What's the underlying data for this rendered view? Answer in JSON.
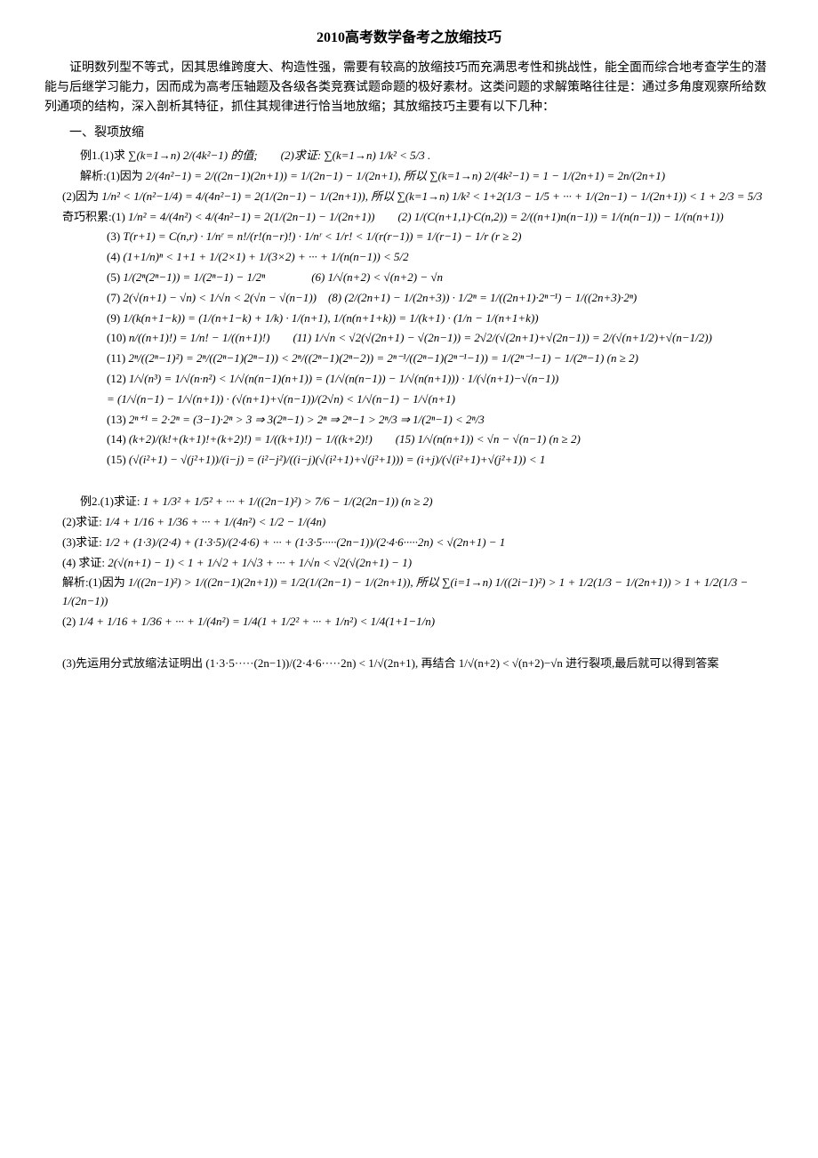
{
  "title": "2010高考数学备考之放缩技巧",
  "intro_p1": "证明数列型不等式，因其思维跨度大、构造性强，需要有较高的放缩技巧而充满思考性和挑战性，能全面而综合地考查学生的潜能与后继学习能力，因而成为高考压轴题及各级各类竞赛试题命题的极好素材。这类问题的求解策略往往是：通过多角度观察所给数列通项的结构，深入剖析其特征，抓住其规律进行恰当地放缩；其放缩技巧主要有以下几种：",
  "section1": "一、裂项放缩",
  "ex1_label": "例1.(1)求",
  "ex1_formula": "∑(k=1→n) 2/(4k²−1) 的值;　　(2)求证: ∑(k=1→n) 1/k² < 5/3 .",
  "ex1_analysis_label": "解析:(1)因为",
  "ex1_analysis": "2/(4n²−1) = 2/((2n−1)(2n+1)) = 1/(2n−1) − 1/(2n+1), 所以 ∑(k=1→n) 2/(4k²−1) = 1 − 1/(2n+1) = 2n/(2n+1)",
  "ex1_part2_label": "(2)因为",
  "ex1_part2": "1/n² < 1/(n²−1/4) = 4/(4n²−1) = 2(1/(2n−1) − 1/(2n+1)), 所以 ∑(k=1→n) 1/k² < 1+2(1/3 − 1/5 + ··· + 1/(2n−1) − 1/(2n+1)) < 1 + 2/3 = 5/3",
  "tricks_label": "奇巧积累:(1)",
  "trick1": "1/n² = 4/(4n²) < 4/(4n²−1) = 2(1/(2n−1) − 1/(2n+1))　　(2) 1/(C(n+1,1)·C(n,2)) = 2/((n+1)n(n−1)) = 1/(n(n−1)) − 1/(n(n+1))",
  "trick3_label": "(3)",
  "trick3": "T(r+1) = C(n,r) · 1/nʳ = n!/(r!(n−r)!) · 1/nʳ < 1/r! < 1/(r(r−1)) = 1/(r−1) − 1/r (r ≥ 2)",
  "trick4_label": "(4)",
  "trick4": "(1+1/n)ⁿ < 1+1 + 1/(2×1) + 1/(3×2) + ··· + 1/(n(n−1)) < 5/2",
  "trick5_label": "(5)",
  "trick5": "1/(2ⁿ(2ⁿ−1)) = 1/(2ⁿ−1) − 1/2ⁿ　　　　(6) 1/√(n+2) < √(n+2) − √n",
  "trick7_label": "(7)",
  "trick7": "2(√(n+1) − √n) < 1/√n < 2(√n − √(n−1))　(8) (2/(2n+1) − 1/(2n+3)) · 1/2ⁿ = 1/((2n+1)·2ⁿ⁻¹) − 1/((2n+3)·2ⁿ)",
  "trick9_label": "(9)",
  "trick9": "1/(k(n+1−k)) = (1/(n+1−k) + 1/k) · 1/(n+1), 1/(n(n+1+k)) = 1/(k+1) · (1/n − 1/(n+1+k))",
  "trick10_label": "(10)",
  "trick10": "n/((n+1)!) = 1/n! − 1/((n+1)!)　　(11) 1/√n < √2(√(2n+1) − √(2n−1)) = 2√2/(√(2n+1)+√(2n−1)) = 2/(√(n+1/2)+√(n−1/2))",
  "trick11_label": "(11)",
  "trick11": "2ⁿ/((2ⁿ−1)²) = 2ⁿ/((2ⁿ−1)(2ⁿ−1)) < 2ⁿ/((2ⁿ−1)(2ⁿ−2)) = 2ⁿ⁻¹/((2ⁿ−1)(2ⁿ⁻¹−1)) = 1/(2ⁿ⁻¹−1) − 1/(2ⁿ−1) (n ≥ 2)",
  "trick12_label": "(12)",
  "trick12": "1/√(n³) = 1/√(n·n²) < 1/√(n(n−1)(n+1)) = (1/√(n(n−1)) − 1/√(n(n+1))) · 1/(√(n+1)−√(n−1))",
  "trick12b": "= (1/√(n−1) − 1/√(n+1)) · (√(n+1)+√(n−1))/(2√n) < 1/√(n−1) − 1/√(n+1)",
  "trick13_label": "(13)",
  "trick13": "2ⁿ⁺¹ = 2·2ⁿ = (3−1)·2ⁿ > 3 ⇒ 3(2ⁿ−1) > 2ⁿ ⇒ 2ⁿ−1 > 2ⁿ/3 ⇒ 1/(2ⁿ−1) < 2ⁿ/3",
  "trick14_label": "(14)",
  "trick14": "(k+2)/(k!+(k+1)!+(k+2)!) = 1/((k+1)!) − 1/((k+2)!)　　(15) 1/√(n(n+1)) < √n − √(n−1) (n ≥ 2)",
  "trick15_label": "(15)",
  "trick15": "(√(i²+1) − √(j²+1))/(i−j) = (i²−j²)/((i−j)(√(i²+1)+√(j²+1))) = (i+j)/(√(i²+1)+√(j²+1)) < 1",
  "ex2_label": "例2.(1)求证:",
  "ex2_1": "1 + 1/3² + 1/5² + ··· + 1/((2n−1)²) > 7/6 − 1/(2(2n−1)) (n ≥ 2)",
  "ex2_2_label": "(2)求证:",
  "ex2_2": "1/4 + 1/16 + 1/36 + ··· + 1/(4n²) < 1/2 − 1/(4n)",
  "ex2_3_label": "(3)求证:",
  "ex2_3": "1/2 + (1·3)/(2·4) + (1·3·5)/(2·4·6) + ··· + (1·3·5·····(2n−1))/(2·4·6·····2n) < √(2n+1) − 1",
  "ex2_4_label": "(4) 求证:",
  "ex2_4": "2(√(n+1) − 1) < 1 + 1/√2 + 1/√3 + ··· + 1/√n < √2(√(2n+1) − 1)",
  "ex2_analysis_label": "解析:(1)因为",
  "ex2_analysis": "1/((2n−1)²) > 1/((2n−1)(2n+1)) = 1/2(1/(2n−1) − 1/(2n+1)), 所以 ∑(i=1→n) 1/((2i−1)²) > 1 + 1/2(1/3 − 1/(2n+1)) > 1 + 1/2(1/3 − 1/(2n−1))",
  "ex2_sol2_label": "(2)",
  "ex2_sol2": "1/4 + 1/16 + 1/36 + ··· + 1/(4n²) = 1/4(1 + 1/2² + ··· + 1/n²) < 1/4(1+1−1/n)",
  "ex2_sol3": "(3)先运用分式放缩法证明出 (1·3·5·····(2n−1))/(2·4·6·····2n) < 1/√(2n+1), 再结合 1/√(n+2) < √(n+2)−√n 进行裂项,最后就可以得到答案"
}
